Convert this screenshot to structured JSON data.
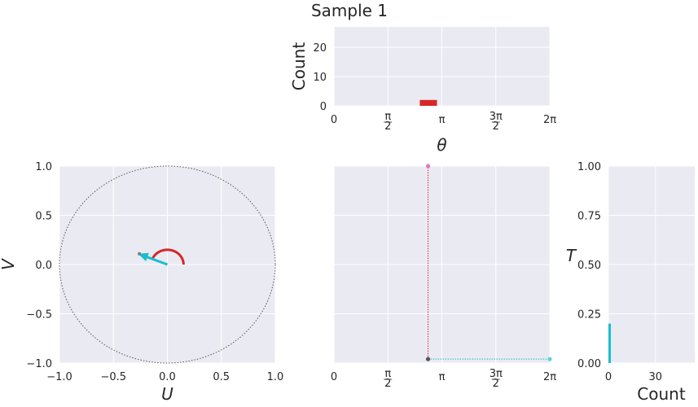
{
  "title": "Sample 1",
  "chart_data": [
    {
      "id": "theta_hist",
      "type": "bar",
      "xlabel": "θ",
      "ylabel": "Count",
      "xlim": [
        0,
        6.2832
      ],
      "ylim": [
        0,
        27
      ],
      "yticks": [
        0,
        10,
        20
      ],
      "ytick_labels": [
        "0",
        "10",
        "20"
      ],
      "xticks": [
        0,
        1.5708,
        3.1416,
        4.7124,
        6.2832
      ],
      "xtick_labels": [
        "0",
        "π/2",
        "π",
        "3π/2",
        "2π"
      ],
      "bins": [
        {
          "x0": 2.5,
          "x1": 3.0,
          "value": 2,
          "color": "#d62728"
        }
      ],
      "grid": true
    },
    {
      "id": "uv_plane",
      "type": "line",
      "xlabel": "U",
      "ylabel": "V",
      "xlim": [
        -1.0,
        1.0
      ],
      "ylim": [
        -1.0,
        1.0
      ],
      "xticks": [
        -1.0,
        -0.5,
        0.0,
        0.5,
        1.0
      ],
      "xtick_labels": [
        "−1.0",
        "−0.5",
        "0.0",
        "0.5",
        "1.0"
      ],
      "yticks": [
        -1.0,
        -0.5,
        0.0,
        0.5,
        1.0
      ],
      "ytick_labels": [
        "−1.0",
        "−0.5",
        "0.0",
        "0.5",
        "1.0"
      ],
      "unit_circle": {
        "radius": 1.0,
        "style": "dotted",
        "color": "#555555"
      },
      "angle_arc": {
        "radius": 0.15,
        "theta_start": 0,
        "theta_end": 2.74,
        "color": "#d62728"
      },
      "vector": {
        "u": -0.27,
        "v": 0.11,
        "color": "#17becf"
      },
      "vector_tip_point": {
        "u": -0.26,
        "v": 0.11,
        "color": "#7f7f7f"
      },
      "grid": true
    },
    {
      "id": "theta_t",
      "type": "line",
      "xlim": [
        0,
        6.2832
      ],
      "ylim": [
        0,
        1.0
      ],
      "xticks": [
        0,
        1.5708,
        3.1416,
        4.7124,
        6.2832
      ],
      "xtick_labels": [
        "0",
        "π/2",
        "π",
        "3π/2",
        "2π"
      ],
      "vertical_line": {
        "x": 2.74,
        "y0": 0.02,
        "y1": 1.0,
        "color": "#d62728"
      },
      "horizontal_line": {
        "y": 0.02,
        "x0": 2.74,
        "x1": 6.2832,
        "color": "#17becf"
      },
      "points": [
        {
          "x": 2.74,
          "y": 1.0,
          "color": "#e377c2"
        },
        {
          "x": 2.74,
          "y": 0.02,
          "color": "#555555"
        },
        {
          "x": 6.2832,
          "y": 0.02,
          "color": "#5fd3df"
        }
      ],
      "grid": true
    },
    {
      "id": "t_hist",
      "type": "bar",
      "orientation": "horizontal",
      "xlabel": "Count",
      "ylabel": "T",
      "xlim": [
        0,
        55
      ],
      "ylim": [
        0,
        1.0
      ],
      "xticks": [
        0,
        30
      ],
      "xtick_labels": [
        "0",
        "30"
      ],
      "yticks": [
        0,
        0.25,
        0.5,
        0.75,
        1.0
      ],
      "ytick_labels": [
        "0.00",
        "0.25",
        "0.50",
        "0.75",
        "1.00"
      ],
      "bins": [
        {
          "y0": 0.0,
          "y1": 0.2,
          "value": 1,
          "color": "#17becf"
        }
      ],
      "grid": true
    }
  ]
}
